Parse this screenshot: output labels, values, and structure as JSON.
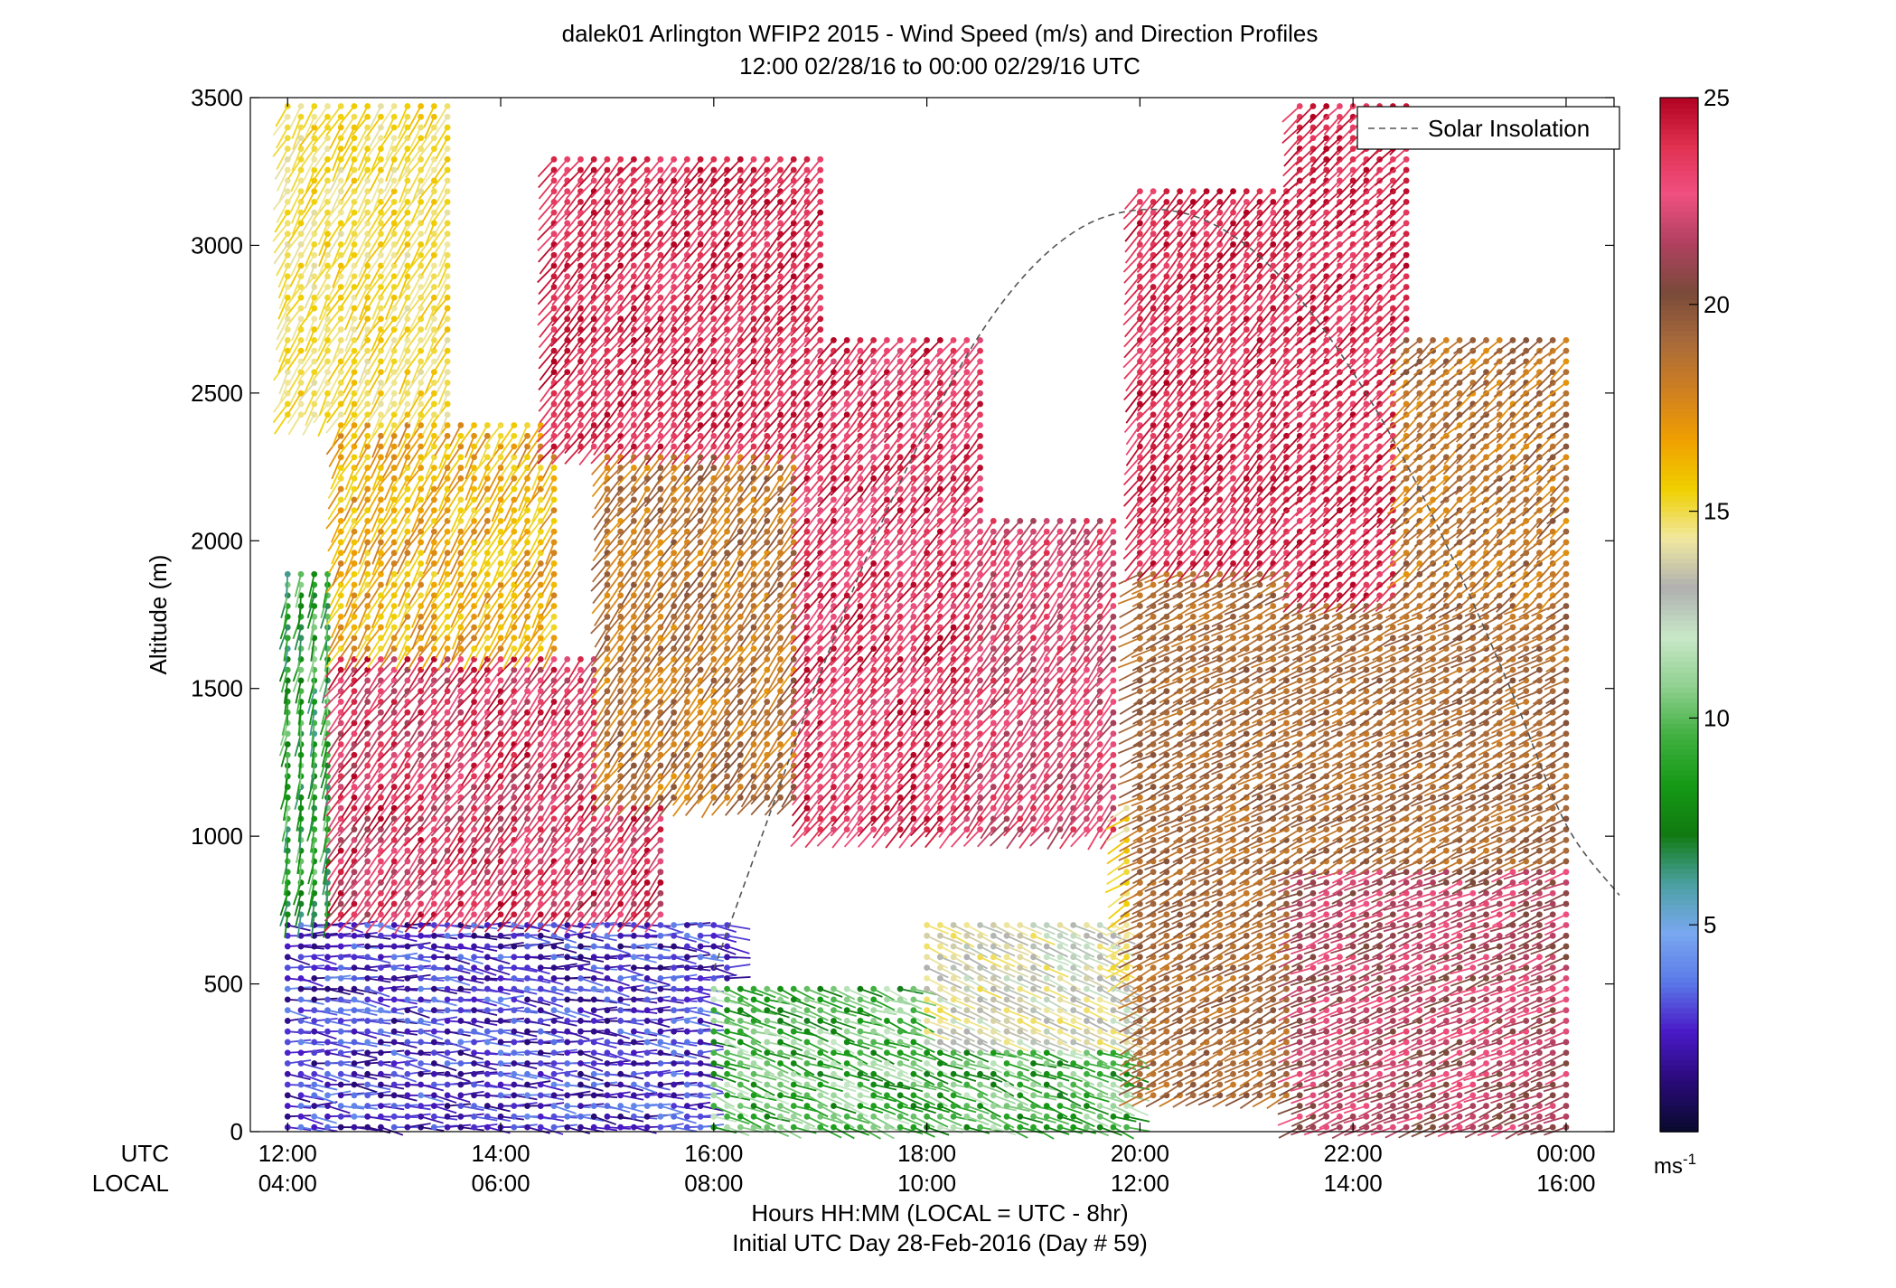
{
  "chart_data": {
    "type": "wind-barb-profile",
    "title": "dalek01 Arlington WFIP2 2015 - Wind Speed (m/s) and Direction Profiles",
    "subtitle": "12:00 02/28/16 to 00:00 02/29/16  UTC",
    "ylabel": "Altitude (m)",
    "xlabel": "Hours HH:MM  (LOCAL = UTC - 8hr)",
    "xlabel2": "Initial UTC Day 28-Feb-2016 (Day # 59)",
    "utc_label": "UTC",
    "local_label": "LOCAL",
    "x_utc_hours": [
      12,
      24
    ],
    "y_range_m": [
      0,
      3500
    ],
    "y_ticks": [
      "0",
      "500",
      "1000",
      "1500",
      "2000",
      "2500",
      "3000",
      "3500"
    ],
    "x_ticks_utc": [
      "12:00",
      "14:00",
      "16:00",
      "18:00",
      "20:00",
      "22:00",
      "00:00"
    ],
    "x_ticks_local": [
      "04:00",
      "06:00",
      "08:00",
      "10:00",
      "12:00",
      "14:00",
      "16:00"
    ],
    "x_tick_hours": [
      12,
      14,
      16,
      18,
      20,
      22,
      24
    ],
    "colorbar": {
      "range": [
        0,
        25
      ],
      "ticks": [
        "5",
        "10",
        "15",
        "20",
        "25"
      ],
      "unit": "ms",
      "unit_exp": "-1",
      "colors": [
        "#0a0a30",
        "#2a0a7a",
        "#4a1ac8",
        "#5a7ae8",
        "#7aa8f0",
        "#4aa0a0",
        "#107a10",
        "#159a15",
        "#40b040",
        "#90d090",
        "#c8e8c8",
        "#b0b0b0",
        "#f0e8a0",
        "#f0d000",
        "#f0a000",
        "#d08020",
        "#a86a3a",
        "#7a4a3a",
        "#b04060",
        "#f05080",
        "#e03050",
        "#b00020"
      ]
    },
    "legend": {
      "label": "Solar Insolation",
      "placement": "top-right"
    },
    "solar_insolation_curve": [
      {
        "utc": 16.0,
        "alt": 550
      },
      {
        "utc": 16.5,
        "alt": 1050
      },
      {
        "utc": 17.0,
        "alt": 1550
      },
      {
        "utc": 17.5,
        "alt": 2000
      },
      {
        "utc": 18.0,
        "alt": 2380
      },
      {
        "utc": 18.5,
        "alt": 2700
      },
      {
        "utc": 19.0,
        "alt": 2930
      },
      {
        "utc": 19.5,
        "alt": 3070
      },
      {
        "utc": 20.0,
        "alt": 3120
      },
      {
        "utc": 20.5,
        "alt": 3100
      },
      {
        "utc": 21.0,
        "alt": 3000
      },
      {
        "utc": 21.5,
        "alt": 2820
      },
      {
        "utc": 22.0,
        "alt": 2570
      },
      {
        "utc": 22.5,
        "alt": 2260
      },
      {
        "utc": 23.0,
        "alt": 1890
      },
      {
        "utc": 23.5,
        "alt": 1480
      },
      {
        "utc": 24.0,
        "alt": 1040
      },
      {
        "utc": 24.5,
        "alt": 800
      }
    ],
    "speed_regions": [
      {
        "utc": [
          11.9,
          16.2
        ],
        "alt": [
          0,
          700
        ],
        "speed": [
          1,
          4
        ],
        "dir_deg": [
          80,
          110
        ]
      },
      {
        "utc": [
          16.0,
          19.9
        ],
        "alt": [
          0,
          500
        ],
        "speed": [
          7,
          12
        ],
        "dir_deg": [
          100,
          120
        ]
      },
      {
        "utc": [
          18.0,
          20.0
        ],
        "alt": [
          300,
          700
        ],
        "speed": [
          12,
          15
        ],
        "dir_deg": [
          110,
          120
        ]
      },
      {
        "utc": [
          12.0,
          12.4
        ],
        "alt": [
          700,
          1900
        ],
        "speed": [
          6,
          11
        ],
        "dir_deg": [
          180,
          200
        ]
      },
      {
        "utc": [
          12.0,
          13.5
        ],
        "alt": [
          2400,
          3500
        ],
        "speed": [
          14,
          16
        ],
        "dir_deg": [
          200,
          220
        ]
      },
      {
        "utc": [
          12.5,
          14.5
        ],
        "alt": [
          1600,
          2400
        ],
        "speed": [
          15,
          18
        ],
        "dir_deg": [
          200,
          220
        ]
      },
      {
        "utc": [
          12.5,
          15.5
        ],
        "alt": [
          700,
          1600
        ],
        "speed": [
          21,
          25
        ],
        "dir_deg": [
          210,
          225
        ]
      },
      {
        "utc": [
          15.0,
          16.8
        ],
        "alt": [
          1100,
          2300
        ],
        "speed": [
          17,
          20
        ],
        "dir_deg": [
          210,
          225
        ]
      },
      {
        "utc": [
          14.5,
          17.0
        ],
        "alt": [
          2300,
          3300
        ],
        "speed": [
          23,
          25
        ],
        "dir_deg": [
          215,
          225
        ]
      },
      {
        "utc": [
          16.8,
          18.5
        ],
        "alt": [
          1000,
          2700
        ],
        "speed": [
          22,
          25
        ],
        "dir_deg": [
          215,
          225
        ]
      },
      {
        "utc": [
          18.5,
          19.8
        ],
        "alt": [
          1000,
          2100
        ],
        "speed": [
          21,
          24
        ],
        "dir_deg": [
          210,
          225
        ]
      },
      {
        "utc": [
          20.0,
          21.5
        ],
        "alt": [
          1900,
          3200
        ],
        "speed": [
          23,
          25
        ],
        "dir_deg": [
          215,
          225
        ]
      },
      {
        "utc": [
          19.8,
          20.2
        ],
        "alt": [
          500,
          1100
        ],
        "speed": [
          14,
          16
        ],
        "dir_deg": [
          230,
          245
        ]
      },
      {
        "utc": [
          20.0,
          21.5
        ],
        "alt": [
          100,
          1900
        ],
        "speed": [
          18,
          20
        ],
        "dir_deg": [
          235,
          250
        ]
      },
      {
        "utc": [
          21.5,
          24.1
        ],
        "alt": [
          0,
          900
        ],
        "speed": [
          20,
          23
        ],
        "dir_deg": [
          240,
          255
        ]
      },
      {
        "utc": [
          21.5,
          24.1
        ],
        "alt": [
          900,
          1800
        ],
        "speed": [
          18,
          20
        ],
        "dir_deg": [
          235,
          250
        ]
      },
      {
        "utc": [
          21.5,
          22.5
        ],
        "alt": [
          1800,
          3500
        ],
        "speed": [
          23,
          25
        ],
        "dir_deg": [
          220,
          230
        ]
      },
      {
        "utc": [
          22.5,
          24.0
        ],
        "alt": [
          1800,
          2700
        ],
        "speed": [
          17,
          20
        ],
        "dir_deg": [
          220,
          235
        ]
      }
    ]
  }
}
